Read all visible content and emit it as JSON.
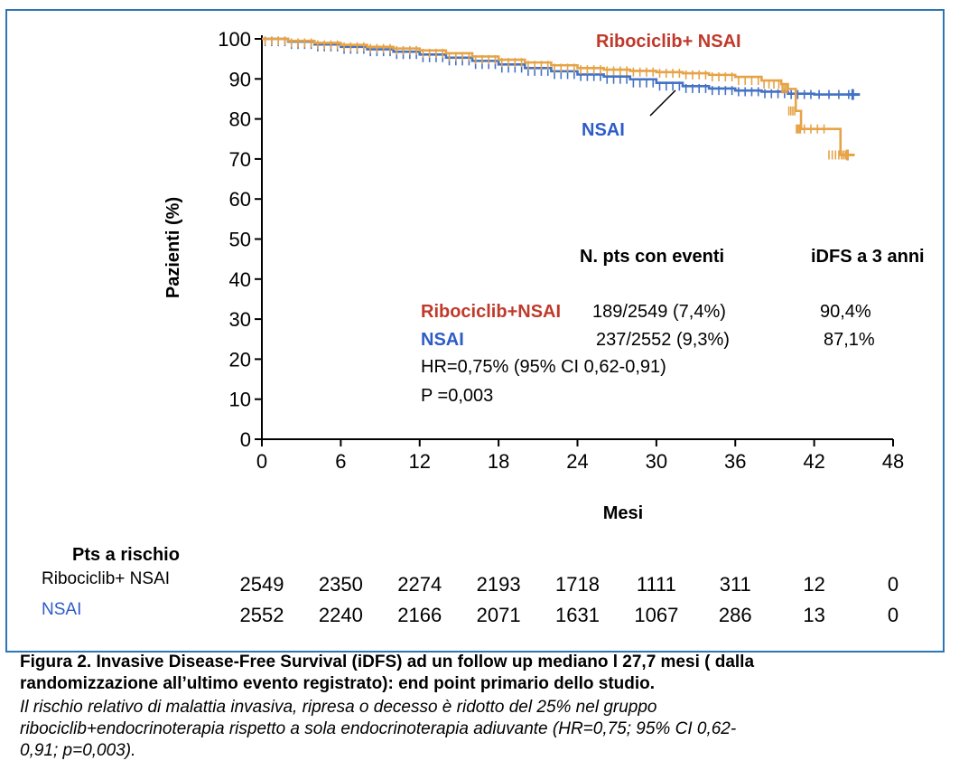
{
  "chart_data": {
    "type": "line",
    "title": "",
    "xlabel": "Mesi",
    "ylabel": "Pazienti (%)",
    "xlim": [
      0,
      48
    ],
    "ylim": [
      0,
      100
    ],
    "x_ticks": [
      0,
      6,
      12,
      18,
      24,
      30,
      36,
      42,
      48
    ],
    "y_ticks": [
      0,
      10,
      20,
      30,
      40,
      50,
      60,
      70,
      80,
      90,
      100
    ],
    "grid": false,
    "series": [
      {
        "name": "Ribociclib+ NSAI",
        "color": "#e6a347",
        "label_color": "#c0392b",
        "points": [
          [
            0,
            100
          ],
          [
            2,
            99.5
          ],
          [
            4,
            99
          ],
          [
            6,
            98.5
          ],
          [
            8,
            98
          ],
          [
            10,
            97.6
          ],
          [
            12,
            97.1
          ],
          [
            14,
            96.4
          ],
          [
            16,
            95.6
          ],
          [
            18,
            94.8
          ],
          [
            20,
            94.1
          ],
          [
            22,
            93.4
          ],
          [
            24,
            92.7
          ],
          [
            26,
            92.3
          ],
          [
            28,
            92
          ],
          [
            30,
            91.7
          ],
          [
            32,
            91.4
          ],
          [
            34,
            91
          ],
          [
            36,
            90.5
          ],
          [
            38,
            89.6
          ],
          [
            39.5,
            88.7
          ],
          [
            40,
            87.5
          ],
          [
            40.6,
            82
          ],
          [
            41,
            77.5
          ],
          [
            43,
            77.5
          ],
          [
            44,
            71
          ],
          [
            44.6,
            71
          ]
        ]
      },
      {
        "name": "NSAI",
        "color": "#4472c4",
        "label_color": "#2e5cc7",
        "points": [
          [
            0,
            100
          ],
          [
            2,
            99.3
          ],
          [
            4,
            98.6
          ],
          [
            6,
            98
          ],
          [
            8,
            97.4
          ],
          [
            10,
            96.8
          ],
          [
            12,
            96.1
          ],
          [
            14,
            95.3
          ],
          [
            16,
            94.5
          ],
          [
            18,
            93.6
          ],
          [
            20,
            92.7
          ],
          [
            22,
            91.9
          ],
          [
            24,
            91.1
          ],
          [
            26,
            90.6
          ],
          [
            28,
            89.9
          ],
          [
            30,
            89
          ],
          [
            32,
            88.2
          ],
          [
            34,
            87.6
          ],
          [
            36,
            87.1
          ],
          [
            38,
            86.8
          ],
          [
            40,
            86.3
          ],
          [
            42,
            86.1
          ],
          [
            45,
            86.1
          ]
        ]
      }
    ],
    "series_labels": [
      "Ribociclib+ NSAI",
      "NSAI"
    ],
    "stats": {
      "header_events": "N. pts con eventi",
      "header_idfs": "iDFS a 3 anni",
      "rows": [
        {
          "name": "Ribociclib+NSAI",
          "events": "189/2549 (7,4%)",
          "idfs": "90,4%"
        },
        {
          "name": "NSAI",
          "events": "237/2552 (9,3%)",
          "idfs": "87,1%"
        }
      ],
      "hr": "HR=0,75% (95% CI 0,62-0,91)",
      "p": "P =0,003"
    },
    "risk_table": {
      "title": "Pts a rischio",
      "rows": [
        {
          "name": "Ribociclib+ NSAI",
          "values": [
            "2549",
            "2350",
            "2274",
            "2193",
            "1718",
            "1111",
            "311",
            "12",
            "0"
          ]
        },
        {
          "name": "NSAI",
          "values": [
            "2552",
            "2240",
            "2166",
            "2071",
            "1631",
            "1067",
            "286",
            "13",
            "0"
          ]
        }
      ]
    }
  },
  "caption": {
    "line1": "Figura 2. Invasive Disease-Free Survival (iDFS) ad un follow up mediano l 27,7 mesi ( dalla",
    "line2": "randomizzazione all’ultimo evento registrato): end point primario dello studio.",
    "line3": "Il rischio relativo di malattia invasiva, ripresa o decesso è ridotto del 25% nel gruppo",
    "line4": "ribociclib+endocrinoterapia rispetto a sola endocrinoterapia adiuvante (HR=0,75; 95% CI 0,62-",
    "line5": "0,91; p=0,003)."
  }
}
